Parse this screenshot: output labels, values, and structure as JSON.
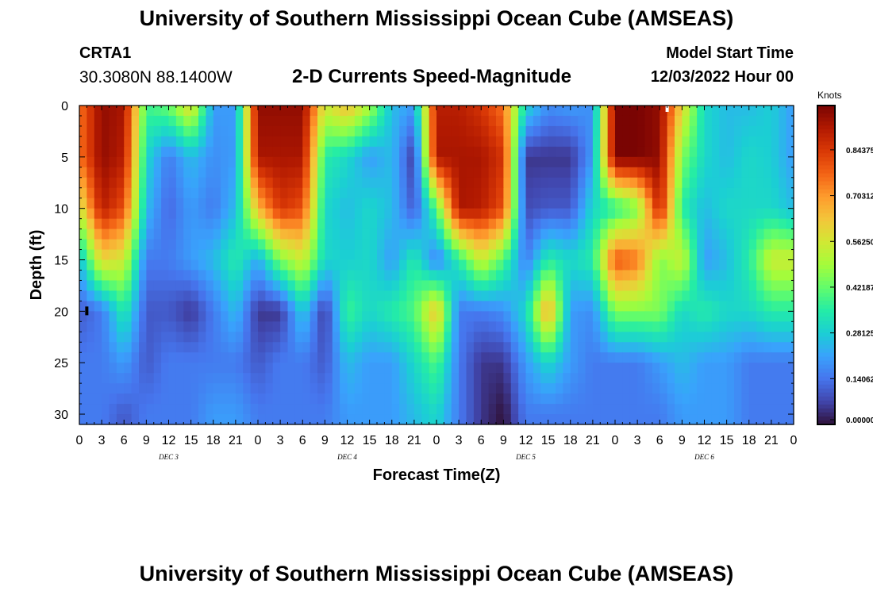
{
  "page": {
    "title": "University of Southern Mississippi Ocean Cube (AMSEAS)",
    "title_repeat": "University of Southern Mississippi Ocean Cube (AMSEAS)",
    "station_id": "CRTA1",
    "coordinates": "30.3080N  88.1400W",
    "model_start_label": "Model Start Time",
    "model_start_value": "12/03/2022 Hour 00"
  },
  "colors": {
    "colormap": [
      "#30123b",
      "#4145ab",
      "#4675ed",
      "#39a2fc",
      "#1bcfd4",
      "#24eca6",
      "#61fc6c",
      "#a4fc3b",
      "#d1e834",
      "#f3c63a",
      "#fe9b2d",
      "#f36315",
      "#d93806",
      "#b11901",
      "#7a0403"
    ],
    "axis": "#000000"
  },
  "chart_data": {
    "type": "heatmap",
    "title": "2-D Currents Speed-Magnitude",
    "xlabel": "Forecast Time(Z)",
    "ylabel": "Depth (ft)",
    "x_range": [
      0,
      96
    ],
    "y_range": [
      0,
      31
    ],
    "x_ticks": [
      0,
      3,
      6,
      9,
      12,
      15,
      18,
      21,
      24,
      27,
      30,
      33,
      36,
      39,
      42,
      45,
      48,
      51,
      54,
      57,
      60,
      63,
      66,
      69,
      72,
      75,
      78,
      81,
      84,
      87,
      90,
      93,
      96
    ],
    "x_tick_labels": [
      "0",
      "3",
      "6",
      "9",
      "12",
      "15",
      "18",
      "21",
      "0",
      "3",
      "6",
      "9",
      "12",
      "15",
      "18",
      "21",
      "0",
      "3",
      "6",
      "9",
      "12",
      "15",
      "18",
      "21",
      "0",
      "3",
      "6",
      "9",
      "12",
      "15",
      "18",
      "21",
      "0"
    ],
    "y_ticks": [
      0,
      5,
      10,
      15,
      20,
      25,
      30
    ],
    "y_tick_labels": [
      "0",
      "5",
      "10",
      "15",
      "20",
      "25",
      "30"
    ],
    "day_labels": [
      {
        "label": "DEC 3",
        "x": 12
      },
      {
        "label": "DEC 4",
        "x": 36
      },
      {
        "label": "DEC 5",
        "x": 60
      },
      {
        "label": "DEC 6",
        "x": 84
      }
    ],
    "colorbar": {
      "units": "Knots",
      "range": [
        0.0,
        0.98
      ],
      "ticks": [
        0.0,
        0.140625,
        0.28125,
        0.421875,
        0.5625,
        0.703125,
        0.84375
      ],
      "tick_labels": [
        "0.00000",
        "0.14062",
        "0.28125",
        "0.42187",
        "0.56250",
        "0.70312",
        "0.84375"
      ]
    },
    "grid_x": [
      0,
      3,
      6,
      9,
      12,
      15,
      18,
      21,
      24,
      27,
      30,
      33,
      36,
      39,
      42,
      45,
      48,
      51,
      54,
      57,
      60,
      63,
      66,
      69,
      72,
      75,
      78,
      81,
      84,
      87,
      90,
      93,
      96
    ],
    "grid_y": [
      0,
      5,
      10,
      15,
      20,
      25,
      30
    ],
    "speed_knots": [
      [
        0.75,
        0.95,
        0.92,
        0.38,
        0.43,
        0.6,
        0.2,
        0.2,
        0.95,
        0.95,
        0.95,
        0.55,
        0.65,
        0.5,
        0.25,
        0.2,
        0.9,
        0.9,
        0.85,
        0.75,
        0.3,
        0.18,
        0.2,
        0.18,
        0.98,
        0.98,
        0.95,
        0.6,
        0.3,
        0.25,
        0.25,
        0.28,
        0.2
      ],
      [
        0.75,
        0.95,
        0.9,
        0.3,
        0.15,
        0.25,
        0.18,
        0.2,
        0.92,
        0.92,
        0.92,
        0.35,
        0.3,
        0.2,
        0.25,
        0.05,
        0.92,
        0.92,
        0.92,
        0.85,
        0.05,
        0.05,
        0.05,
        0.2,
        0.98,
        0.98,
        0.95,
        0.45,
        0.3,
        0.25,
        0.3,
        0.28,
        0.2
      ],
      [
        0.55,
        0.9,
        0.8,
        0.25,
        0.12,
        0.2,
        0.15,
        0.25,
        0.65,
        0.85,
        0.8,
        0.3,
        0.25,
        0.3,
        0.25,
        0.1,
        0.4,
        0.92,
        0.9,
        0.8,
        0.08,
        0.1,
        0.1,
        0.3,
        0.35,
        0.45,
        0.9,
        0.35,
        0.25,
        0.3,
        0.3,
        0.3,
        0.25
      ],
      [
        0.25,
        0.6,
        0.55,
        0.15,
        0.15,
        0.2,
        0.25,
        0.35,
        0.22,
        0.45,
        0.55,
        0.3,
        0.28,
        0.3,
        0.2,
        0.35,
        0.15,
        0.35,
        0.55,
        0.4,
        0.15,
        0.35,
        0.3,
        0.35,
        0.8,
        0.75,
        0.45,
        0.55,
        0.2,
        0.25,
        0.35,
        0.55,
        0.55
      ],
      [
        0.1,
        0.15,
        0.35,
        0.1,
        0.1,
        0.05,
        0.15,
        0.25,
        0.05,
        0.05,
        0.28,
        0.05,
        0.38,
        0.3,
        0.35,
        0.4,
        0.65,
        0.15,
        0.15,
        0.18,
        0.3,
        0.7,
        0.2,
        0.18,
        0.45,
        0.45,
        0.45,
        0.3,
        0.35,
        0.3,
        0.3,
        0.35,
        0.35
      ],
      [
        0.15,
        0.15,
        0.2,
        0.1,
        0.15,
        0.15,
        0.15,
        0.15,
        0.1,
        0.15,
        0.15,
        0.1,
        0.25,
        0.2,
        0.2,
        0.3,
        0.4,
        0.15,
        0.05,
        0.05,
        0.2,
        0.3,
        0.2,
        0.15,
        0.15,
        0.15,
        0.2,
        0.25,
        0.2,
        0.2,
        0.15,
        0.15,
        0.15
      ],
      [
        0.15,
        0.15,
        0.1,
        0.15,
        0.15,
        0.15,
        0.2,
        0.2,
        0.15,
        0.15,
        0.15,
        0.15,
        0.2,
        0.2,
        0.2,
        0.25,
        0.3,
        0.15,
        0.05,
        0.0,
        0.15,
        0.15,
        0.15,
        0.15,
        0.15,
        0.15,
        0.15,
        0.2,
        0.2,
        0.2,
        0.15,
        0.15,
        0.15
      ]
    ],
    "annotations": [
      {
        "label": "minimum marker",
        "x": 1,
        "y": 20
      },
      {
        "label": "maximum marker",
        "x": 79,
        "y": 0
      }
    ]
  }
}
